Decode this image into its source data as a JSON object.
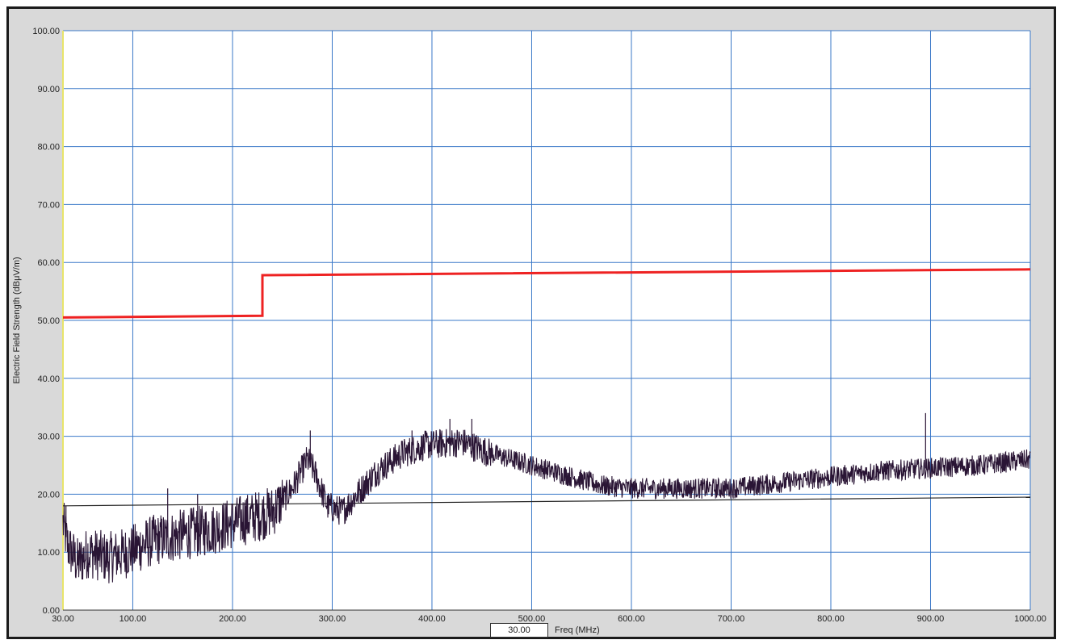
{
  "chart_data": {
    "type": "line",
    "title": "",
    "xlabel": "Freq (MHz)",
    "ylabel": "Electric Field Strength (dBμV/m)",
    "xlim": [
      30,
      1000
    ],
    "ylim": [
      0,
      100
    ],
    "x_ticks": [
      "30.00",
      "100.00",
      "200.00",
      "300.00",
      "400.00",
      "500.00",
      "600.00",
      "700.00",
      "800.00",
      "900.00",
      "1000.00"
    ],
    "y_ticks": [
      "0.00",
      "10.00",
      "20.00",
      "30.00",
      "40.00",
      "50.00",
      "60.00",
      "70.00",
      "80.00",
      "90.00",
      "100.00"
    ],
    "grid": true,
    "series": [
      {
        "color": "#ee2222",
        "style": "step",
        "points": [
          [
            30,
            50.5
          ],
          [
            230,
            50.8
          ],
          [
            230,
            57.8
          ],
          [
            1000,
            58.8
          ]
        ]
      },
      {
        "color": "#222222",
        "style": "line",
        "points": [
          [
            30,
            18.0
          ],
          [
            1000,
            19.5
          ]
        ]
      },
      {
        "color": "#2a1535",
        "style": "noisy",
        "envelope": [
          [
            30,
            15
          ],
          [
            35,
            11
          ],
          [
            45,
            8
          ],
          [
            55,
            10
          ],
          [
            75,
            9
          ],
          [
            95,
            10
          ],
          [
            120,
            12
          ],
          [
            150,
            13
          ],
          [
            180,
            14
          ],
          [
            200,
            15
          ],
          [
            220,
            16
          ],
          [
            240,
            17
          ],
          [
            260,
            21
          ],
          [
            275,
            26
          ],
          [
            282,
            24
          ],
          [
            295,
            18
          ],
          [
            310,
            17
          ],
          [
            325,
            20
          ],
          [
            345,
            24
          ],
          [
            370,
            27
          ],
          [
            395,
            28.5
          ],
          [
            430,
            29
          ],
          [
            460,
            27
          ],
          [
            500,
            25
          ],
          [
            540,
            23
          ],
          [
            570,
            21.5
          ],
          [
            600,
            21
          ],
          [
            650,
            21
          ],
          [
            700,
            21
          ],
          [
            750,
            22
          ],
          [
            800,
            23
          ],
          [
            850,
            24
          ],
          [
            900,
            24.5
          ],
          [
            950,
            25
          ],
          [
            1000,
            26
          ]
        ],
        "spikes": [
          [
            33,
            18
          ],
          [
            135,
            21
          ],
          [
            165,
            20
          ],
          [
            213,
            19
          ],
          [
            255,
            20
          ],
          [
            278,
            31
          ],
          [
            380,
            31
          ],
          [
            418,
            33
          ],
          [
            440,
            33
          ],
          [
            895,
            34
          ]
        ]
      }
    ],
    "cursor_value": "30.00"
  },
  "colors": {
    "background": "#d9d9d9",
    "plot_bg": "#ffffff",
    "grid": "#3a78c8",
    "left_axis": "#e8e46a"
  }
}
